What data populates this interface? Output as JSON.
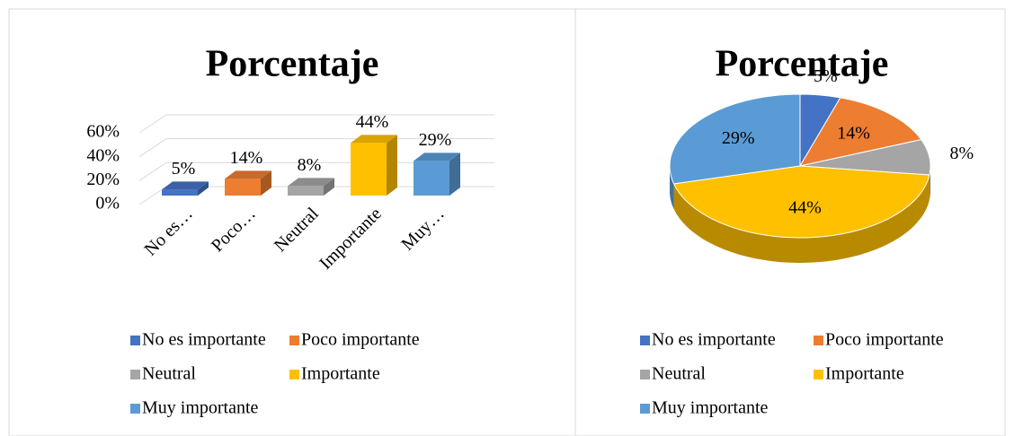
{
  "chart_data": [
    {
      "type": "bar3d",
      "title": "Porcentaje",
      "categories": [
        "No es…",
        "Poco…",
        "Neutral",
        "Importante",
        "Muy…"
      ],
      "values": [
        5,
        14,
        8,
        44,
        29
      ],
      "value_labels": [
        "5%",
        "14%",
        "8%",
        "44%",
        "29%"
      ],
      "colors": [
        "#4472c4",
        "#ed7d31",
        "#a5a5a5",
        "#ffc000",
        "#5b9bd5"
      ],
      "legend": [
        "No es importante",
        "Poco importante",
        "Neutral",
        "Importante",
        "Muy importante"
      ],
      "ylim": [
        0,
        60
      ],
      "yticks": [
        {
          "value": 0,
          "label": "0%"
        },
        {
          "value": 20,
          "label": "20%"
        },
        {
          "value": 40,
          "label": "40%"
        },
        {
          "value": 60,
          "label": "60%"
        }
      ],
      "grid": true
    },
    {
      "type": "pie3d",
      "title": "Porcentaje",
      "categories": [
        "No es importante",
        "Poco importante",
        "Neutral",
        "Importante",
        "Muy importante"
      ],
      "values": [
        5,
        14,
        8,
        44,
        29
      ],
      "value_labels": [
        "5%",
        "14%",
        "8%",
        "44%",
        "29%"
      ],
      "colors": [
        "#4472c4",
        "#ed7d31",
        "#a5a5a5",
        "#ffc000",
        "#5b9bd5"
      ]
    }
  ]
}
